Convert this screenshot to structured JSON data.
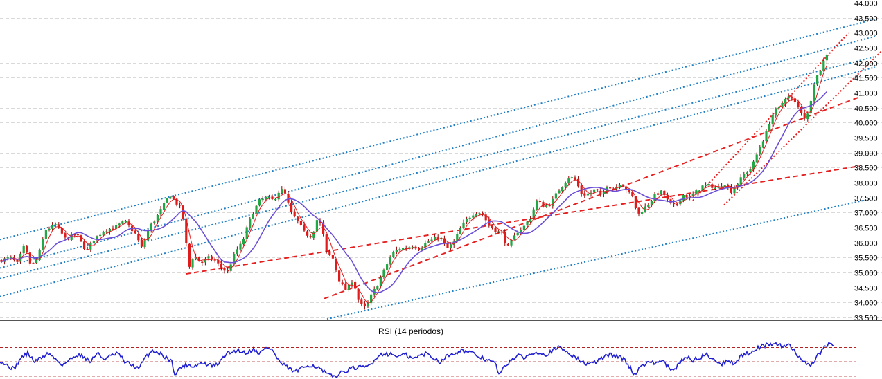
{
  "chart_data": [
    {
      "type": "candlestick",
      "y_ticks": [
        "44.000",
        "43.500",
        "43.000",
        "42.500",
        "42.000",
        "41.500",
        "41.000",
        "40.500",
        "40.000",
        "39.500",
        "39.000",
        "38.500",
        "38.000",
        "37.500",
        "37.000",
        "36.500",
        "36.000",
        "35.500",
        "35.000",
        "34.500",
        "34.000",
        "33.500"
      ],
      "ylim": [
        33500,
        44000
      ],
      "y_axis_position": "right",
      "grid": true,
      "anchors": [
        [
          0,
          35400
        ],
        [
          15,
          35500
        ],
        [
          25,
          35300
        ],
        [
          35,
          35900
        ],
        [
          45,
          35200
        ],
        [
          55,
          35500
        ],
        [
          65,
          36400
        ],
        [
          80,
          36600
        ],
        [
          95,
          36100
        ],
        [
          110,
          36300
        ],
        [
          125,
          35700
        ],
        [
          135,
          36100
        ],
        [
          150,
          36400
        ],
        [
          165,
          36500
        ],
        [
          180,
          36700
        ],
        [
          195,
          36300
        ],
        [
          205,
          35800
        ],
        [
          215,
          36500
        ],
        [
          225,
          36800
        ],
        [
          235,
          37200
        ],
        [
          245,
          37600
        ],
        [
          255,
          37300
        ],
        [
          262,
          37100
        ],
        [
          267,
          36400
        ],
        [
          272,
          35100
        ],
        [
          280,
          35600
        ],
        [
          290,
          35300
        ],
        [
          300,
          35500
        ],
        [
          310,
          35400
        ],
        [
          318,
          35200
        ],
        [
          328,
          35000
        ],
        [
          340,
          35700
        ],
        [
          350,
          36000
        ],
        [
          358,
          36600
        ],
        [
          365,
          37000
        ],
        [
          375,
          37400
        ],
        [
          385,
          37500
        ],
        [
          395,
          37400
        ],
        [
          405,
          37800
        ],
        [
          412,
          37600
        ],
        [
          420,
          37000
        ],
        [
          430,
          36700
        ],
        [
          440,
          36300
        ],
        [
          450,
          36200
        ],
        [
          458,
          36800
        ],
        [
          465,
          36500
        ],
        [
          470,
          35700
        ],
        [
          480,
          35500
        ],
        [
          490,
          34700
        ],
        [
          500,
          34400
        ],
        [
          510,
          34800
        ],
        [
          515,
          34200
        ],
        [
          520,
          33950
        ],
        [
          528,
          33800
        ],
        [
          535,
          34200
        ],
        [
          545,
          34600
        ],
        [
          555,
          35100
        ],
        [
          565,
          35600
        ],
        [
          575,
          35800
        ],
        [
          585,
          35800
        ],
        [
          595,
          35900
        ],
        [
          605,
          35800
        ],
        [
          615,
          36000
        ],
        [
          625,
          36100
        ],
        [
          635,
          36200
        ],
        [
          645,
          35800
        ],
        [
          655,
          36000
        ],
        [
          665,
          36500
        ],
        [
          675,
          36800
        ],
        [
          685,
          37000
        ],
        [
          695,
          37000
        ],
        [
          705,
          36600
        ],
        [
          715,
          36400
        ],
        [
          725,
          36300
        ],
        [
          732,
          35800
        ],
        [
          740,
          36100
        ],
        [
          748,
          36400
        ],
        [
          755,
          36500
        ],
        [
          765,
          36800
        ],
        [
          775,
          37400
        ],
        [
          785,
          37200
        ],
        [
          795,
          37300
        ],
        [
          805,
          37700
        ],
        [
          815,
          38000
        ],
        [
          822,
          38200
        ],
        [
          830,
          38100
        ],
        [
          840,
          37600
        ],
        [
          850,
          37600
        ],
        [
          860,
          37800
        ],
        [
          868,
          37500
        ],
        [
          876,
          37900
        ],
        [
          886,
          37800
        ],
        [
          896,
          38000
        ],
        [
          906,
          37700
        ],
        [
          914,
          37500
        ],
        [
          920,
          36900
        ],
        [
          928,
          37100
        ],
        [
          936,
          37300
        ],
        [
          946,
          37600
        ],
        [
          956,
          37700
        ],
        [
          966,
          37300
        ],
        [
          975,
          37200
        ],
        [
          985,
          37600
        ],
        [
          995,
          37500
        ],
        [
          1005,
          37700
        ],
        [
          1015,
          37900
        ],
        [
          1025,
          37900
        ],
        [
          1035,
          37800
        ],
        [
          1045,
          38000
        ],
        [
          1055,
          37700
        ],
        [
          1065,
          38000
        ],
        [
          1075,
          38300
        ],
        [
          1085,
          38500
        ],
        [
          1095,
          39100
        ],
        [
          1105,
          39600
        ],
        [
          1112,
          40100
        ],
        [
          1118,
          40400
        ],
        [
          1125,
          40500
        ],
        [
          1130,
          40700
        ],
        [
          1135,
          40900
        ],
        [
          1142,
          40800
        ],
        [
          1150,
          40600
        ],
        [
          1158,
          40300
        ],
        [
          1163,
          40100
        ],
        [
          1168,
          40400
        ],
        [
          1173,
          41200
        ],
        [
          1178,
          41500
        ],
        [
          1183,
          41700
        ],
        [
          1188,
          42000
        ],
        [
          1193,
          42300
        ],
        [
          1197,
          42100
        ]
      ],
      "indicators": [
        "fast moving average (red)",
        "slow moving average (purple)"
      ],
      "trend_lines": [
        {
          "style": "dotted",
          "color": "#1f7fc4",
          "anchors": [
            [
              0,
              36100
            ],
            [
              1263,
              43450
            ]
          ]
        },
        {
          "style": "dotted",
          "color": "#1f7fc4",
          "anchors": [
            [
              0,
              35150
            ],
            [
              1263,
              42880
            ]
          ]
        },
        {
          "style": "dotted",
          "color": "#1f7fc4",
          "anchors": [
            [
              0,
              34800
            ],
            [
              1263,
              42200
            ]
          ]
        },
        {
          "style": "dotted",
          "color": "#1f7fc4",
          "anchors": [
            [
              0,
              34200
            ],
            [
              1263,
              41850
            ]
          ]
        },
        {
          "style": "dotted",
          "color": "#1f7fc4",
          "anchors": [
            [
              472,
              33450
            ],
            [
              1263,
              37490
            ]
          ]
        },
        {
          "style": "dashed",
          "color": "#e62020",
          "anchors": [
            [
              468,
              34130
            ],
            [
              1240,
              40850
            ]
          ]
        },
        {
          "style": "dashed",
          "color": "#e62020",
          "anchors": [
            [
              268,
              34950
            ],
            [
              1240,
              38550
            ]
          ]
        },
        {
          "style": "dotted",
          "color": "#e62020",
          "anchors": [
            [
              1000,
              37400
            ],
            [
              1225,
              43000
            ]
          ]
        },
        {
          "style": "dotted",
          "color": "#e62020",
          "anchors": [
            [
              1045,
              37250
            ],
            [
              1273,
              42400
            ]
          ]
        }
      ]
    },
    {
      "type": "line",
      "title": "RSI (14 periodos)",
      "grid": false,
      "levels": [
        70,
        50,
        30
      ],
      "ylim": [
        28,
        82
      ],
      "anchors": [
        [
          0,
          52
        ],
        [
          10,
          45
        ],
        [
          20,
          40
        ],
        [
          30,
          55
        ],
        [
          40,
          62
        ],
        [
          50,
          50
        ],
        [
          60,
          56
        ],
        [
          70,
          62
        ],
        [
          80,
          54
        ],
        [
          90,
          46
        ],
        [
          100,
          52
        ],
        [
          110,
          60
        ],
        [
          120,
          58
        ],
        [
          130,
          50
        ],
        [
          140,
          62
        ],
        [
          150,
          54
        ],
        [
          160,
          58
        ],
        [
          170,
          62
        ],
        [
          180,
          50
        ],
        [
          190,
          46
        ],
        [
          200,
          40
        ],
        [
          210,
          56
        ],
        [
          220,
          66
        ],
        [
          230,
          62
        ],
        [
          240,
          56
        ],
        [
          248,
          50
        ],
        [
          253,
          31
        ],
        [
          260,
          42
        ],
        [
          270,
          46
        ],
        [
          280,
          44
        ],
        [
          290,
          48
        ],
        [
          300,
          46
        ],
        [
          310,
          44
        ],
        [
          318,
          50
        ],
        [
          325,
          60
        ],
        [
          335,
          64
        ],
        [
          345,
          66
        ],
        [
          355,
          62
        ],
        [
          365,
          68
        ],
        [
          375,
          62
        ],
        [
          385,
          70
        ],
        [
          392,
          68
        ],
        [
          398,
          58
        ],
        [
          405,
          48
        ],
        [
          415,
          42
        ],
        [
          425,
          36
        ],
        [
          435,
          40
        ],
        [
          445,
          46
        ],
        [
          455,
          44
        ],
        [
          462,
          40
        ],
        [
          470,
          34
        ],
        [
          478,
          30
        ],
        [
          485,
          30
        ],
        [
          495,
          36
        ],
        [
          505,
          40
        ],
        [
          515,
          42
        ],
        [
          525,
          42
        ],
        [
          535,
          46
        ],
        [
          545,
          58
        ],
        [
          555,
          62
        ],
        [
          565,
          60
        ],
        [
          575,
          58
        ],
        [
          585,
          60
        ],
        [
          595,
          54
        ],
        [
          605,
          58
        ],
        [
          615,
          62
        ],
        [
          625,
          56
        ],
        [
          635,
          50
        ],
        [
          645,
          58
        ],
        [
          655,
          62
        ],
        [
          665,
          66
        ],
        [
          675,
          64
        ],
        [
          685,
          60
        ],
        [
          695,
          56
        ],
        [
          705,
          52
        ],
        [
          715,
          48
        ],
        [
          720,
          32
        ],
        [
          728,
          42
        ],
        [
          738,
          54
        ],
        [
          748,
          58
        ],
        [
          758,
          56
        ],
        [
          768,
          62
        ],
        [
          778,
          64
        ],
        [
          788,
          60
        ],
        [
          798,
          66
        ],
        [
          808,
          70
        ],
        [
          815,
          66
        ],
        [
          822,
          62
        ],
        [
          830,
          56
        ],
        [
          840,
          50
        ],
        [
          850,
          46
        ],
        [
          860,
          50
        ],
        [
          870,
          56
        ],
        [
          880,
          60
        ],
        [
          890,
          58
        ],
        [
          900,
          54
        ],
        [
          908,
          44
        ],
        [
          916,
          32
        ],
        [
          925,
          44
        ],
        [
          935,
          50
        ],
        [
          945,
          48
        ],
        [
          955,
          52
        ],
        [
          965,
          42
        ],
        [
          972,
          36
        ],
        [
          980,
          48
        ],
        [
          990,
          58
        ],
        [
          1000,
          52
        ],
        [
          1010,
          56
        ],
        [
          1020,
          60
        ],
        [
          1030,
          54
        ],
        [
          1040,
          46
        ],
        [
          1050,
          52
        ],
        [
          1060,
          48
        ],
        [
          1070,
          58
        ],
        [
          1080,
          62
        ],
        [
          1090,
          68
        ],
        [
          1100,
          72
        ],
        [
          1110,
          74
        ],
        [
          1120,
          76
        ],
        [
          1130,
          70
        ],
        [
          1140,
          74
        ],
        [
          1150,
          60
        ],
        [
          1160,
          52
        ],
        [
          1168,
          44
        ],
        [
          1175,
          50
        ],
        [
          1180,
          58
        ],
        [
          1185,
          64
        ],
        [
          1190,
          70
        ],
        [
          1195,
          74
        ],
        [
          1200,
          76
        ],
        [
          1205,
          70
        ]
      ]
    }
  ]
}
